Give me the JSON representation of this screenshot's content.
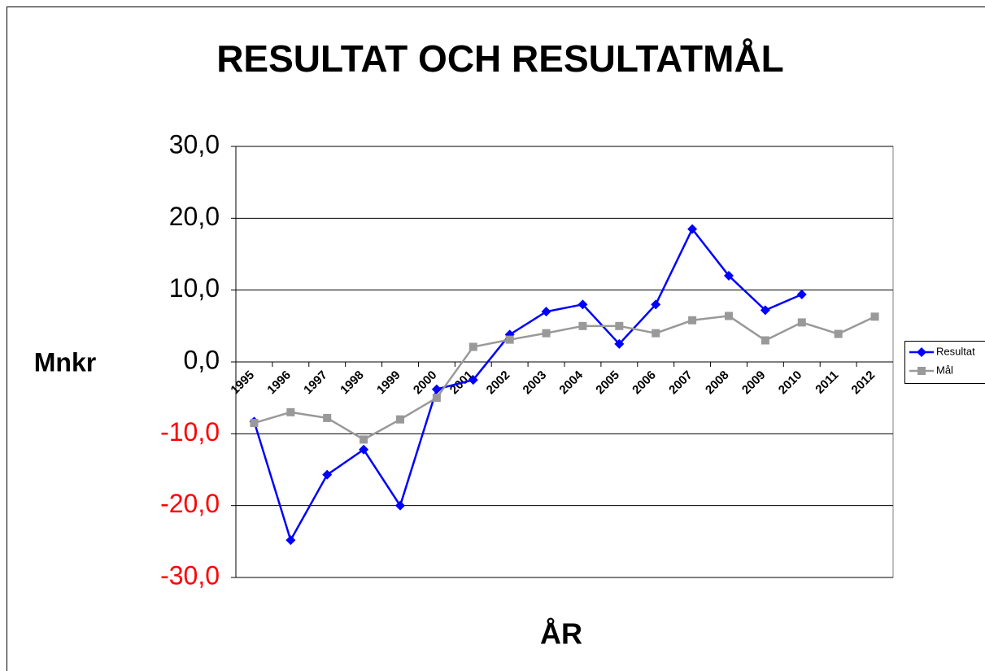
{
  "chart_data": {
    "type": "line",
    "title": "RESULTAT OCH RESULTATMÅL",
    "x_label": "ÅR",
    "y_label": "Mnkr",
    "categories": [
      "1995",
      "1996",
      "1997",
      "1998",
      "1999",
      "2000",
      "2001",
      "2002",
      "2003",
      "2004",
      "2005",
      "2006",
      "2007",
      "2008",
      "2009",
      "2010",
      "2011",
      "2012"
    ],
    "series": [
      {
        "name": "Resultat",
        "color": "#0000ff",
        "marker": "diamond",
        "values": [
          -8.3,
          -24.8,
          -15.7,
          -12.2,
          -20.0,
          -3.8,
          -2.5,
          3.8,
          7.0,
          8.0,
          2.5,
          8.0,
          18.5,
          12.0,
          7.2,
          9.4,
          null,
          null
        ]
      },
      {
        "name": "Mål",
        "color": "#999999",
        "marker": "square",
        "values": [
          -8.5,
          -7.0,
          -7.8,
          -10.8,
          -8.0,
          -5.0,
          2.1,
          3.1,
          4.0,
          5.0,
          5.0,
          4.0,
          5.8,
          6.4,
          3.0,
          5.5,
          3.9,
          6.3
        ]
      }
    ],
    "ylim": [
      -30,
      30
    ],
    "yticks": [
      {
        "value": -30,
        "label": "-30,0"
      },
      {
        "value": -20,
        "label": "-20,0"
      },
      {
        "value": -10,
        "label": "-10,0"
      },
      {
        "value": 0,
        "label": "0,0"
      },
      {
        "value": 10,
        "label": "10,0"
      },
      {
        "value": 20,
        "label": "20,0"
      },
      {
        "value": 30,
        "label": "30,0"
      }
    ],
    "negative_tick_color": "#ff0000",
    "grid": true,
    "legend": "right"
  }
}
